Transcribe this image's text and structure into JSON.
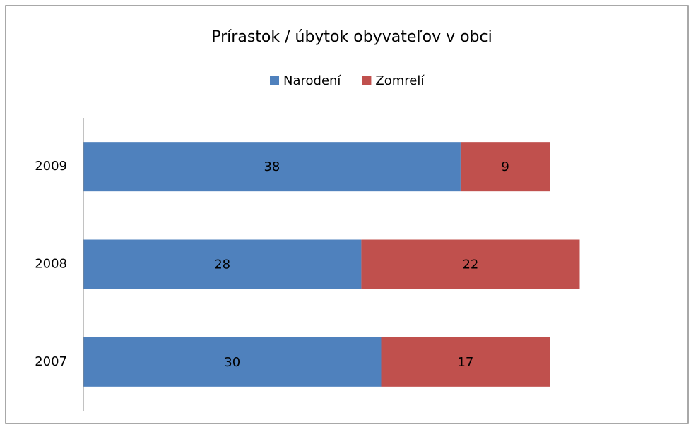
{
  "chart_data": {
    "type": "stacked-bar-horizontal",
    "title": "Prírastok / úbytok obyvateľov v obci",
    "categories": [
      "2009",
      "2008",
      "2007"
    ],
    "series": [
      {
        "name": "Narodení",
        "color": "#4f81bd",
        "values": [
          38,
          28,
          30
        ]
      },
      {
        "name": "Zomrelí",
        "color": "#c0504d",
        "values": [
          9,
          22,
          17
        ]
      }
    ],
    "legend": "top",
    "data_labels": true
  }
}
